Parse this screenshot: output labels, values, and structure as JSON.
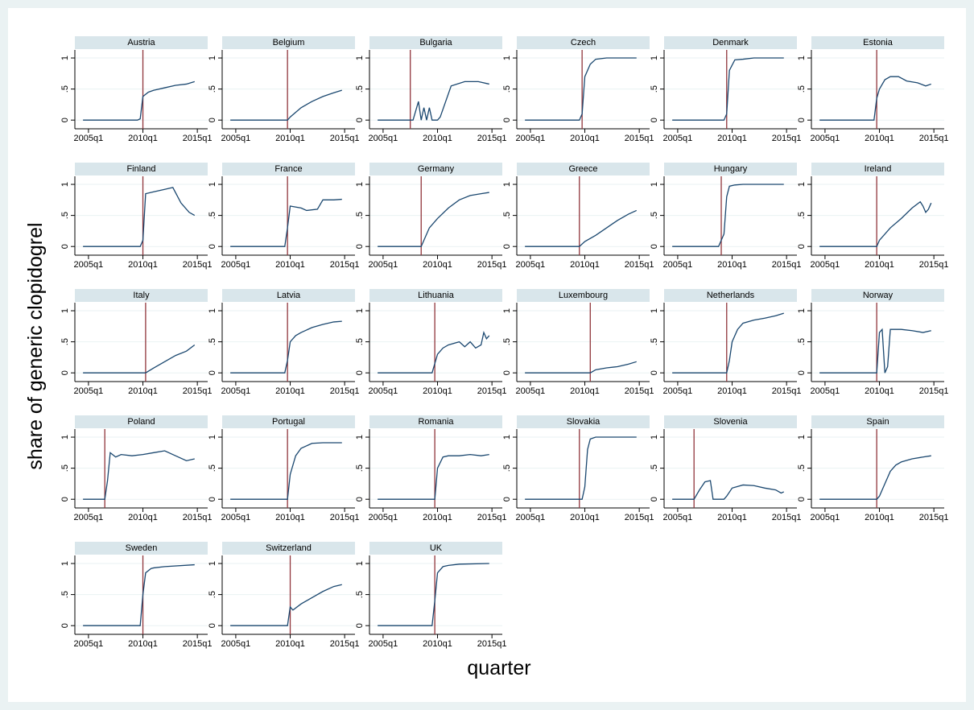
{
  "chart_data": {
    "type": "line",
    "xlabel": "quarter",
    "ylabel": "share of generic clopidogrel",
    "color": "#1a476f",
    "event_color": "#90353b",
    "grid": true,
    "xlim": [
      2003.75,
      2015.95
    ],
    "ylim": [
      -0.14,
      1.13
    ],
    "xticks": [
      {
        "value": 2005,
        "label": "2005q1"
      },
      {
        "value": 2010,
        "label": "2010q1"
      },
      {
        "value": 2015,
        "label": "2015q1"
      }
    ],
    "yticks": [
      0,
      {
        "value": 0.5,
        "label": ".5"
      },
      1
    ],
    "panels": [
      {
        "title": "Austria",
        "event": 2010,
        "x": [
          2004.5,
          2009.5,
          2009.75,
          2010,
          2010.5,
          2011,
          2012,
          2013,
          2014,
          2014.75
        ],
        "values": [
          0,
          0,
          0.02,
          0.38,
          0.45,
          0.48,
          0.52,
          0.56,
          0.58,
          0.62
        ]
      },
      {
        "title": "Belgium",
        "event": 2009.75,
        "x": [
          2004.5,
          2009.5,
          2009.75,
          2010,
          2011,
          2012,
          2013,
          2014,
          2014.75
        ],
        "values": [
          0,
          0,
          0,
          0.05,
          0.2,
          0.3,
          0.38,
          0.44,
          0.48
        ]
      },
      {
        "title": "Bulgaria",
        "event": 2007.5,
        "x": [
          2004.5,
          2007.75,
          2008.25,
          2008.5,
          2008.75,
          2009,
          2009.25,
          2009.5,
          2010,
          2010.25,
          2011.25,
          2012.5,
          2013.75,
          2014.75
        ],
        "values": [
          0,
          0,
          0.3,
          0,
          0.2,
          0,
          0.2,
          0,
          0,
          0.05,
          0.55,
          0.62,
          0.62,
          0.58
        ]
      },
      {
        "title": "Czech",
        "event": 2009.75,
        "x": [
          2004.5,
          2009.5,
          2009.75,
          2010,
          2010.5,
          2011,
          2012,
          2014.75
        ],
        "values": [
          0,
          0,
          0.1,
          0.7,
          0.9,
          0.98,
          1,
          1
        ]
      },
      {
        "title": "Denmark",
        "event": 2009.5,
        "x": [
          2004.5,
          2009.25,
          2009.5,
          2009.75,
          2010.25,
          2011,
          2012,
          2014.75
        ],
        "values": [
          0,
          0,
          0.1,
          0.8,
          0.97,
          0.98,
          1,
          1
        ]
      },
      {
        "title": "Estonia",
        "event": 2009.75,
        "x": [
          2004.5,
          2009.5,
          2009.75,
          2010,
          2010.5,
          2011,
          2011.75,
          2012.5,
          2013.5,
          2014.25,
          2014.75
        ],
        "values": [
          0,
          0,
          0.35,
          0.5,
          0.65,
          0.7,
          0.7,
          0.63,
          0.6,
          0.55,
          0.58
        ]
      },
      {
        "title": "Finland",
        "event": 2010,
        "x": [
          2004.5,
          2009.75,
          2010,
          2010.25,
          2011,
          2012,
          2012.75,
          2013.5,
          2014.25,
          2014.75
        ],
        "values": [
          0,
          0,
          0.1,
          0.85,
          0.88,
          0.92,
          0.95,
          0.7,
          0.55,
          0.5
        ]
      },
      {
        "title": "France",
        "event": 2009.75,
        "x": [
          2004.5,
          2009.5,
          2009.75,
          2010,
          2011,
          2011.5,
          2012.5,
          2013,
          2014,
          2014.75
        ],
        "values": [
          0,
          0,
          0.3,
          0.65,
          0.62,
          0.58,
          0.6,
          0.75,
          0.75,
          0.76
        ]
      },
      {
        "title": "Germany",
        "event": 2008.5,
        "x": [
          2004.5,
          2008.5,
          2008.75,
          2009.25,
          2010,
          2011,
          2012,
          2013,
          2014,
          2014.75
        ],
        "values": [
          0,
          0,
          0.1,
          0.3,
          0.45,
          0.62,
          0.75,
          0.82,
          0.85,
          0.87
        ]
      },
      {
        "title": "Greece",
        "event": 2009.5,
        "x": [
          2004.5,
          2009.5,
          2010,
          2011,
          2012,
          2013,
          2014,
          2014.75
        ],
        "values": [
          0,
          0,
          0.08,
          0.18,
          0.3,
          0.42,
          0.52,
          0.58
        ]
      },
      {
        "title": "Hungary",
        "event": 2009,
        "x": [
          2004.5,
          2008.75,
          2009.25,
          2009.5,
          2009.75,
          2010.25,
          2011,
          2014.75
        ],
        "values": [
          0,
          0,
          0.2,
          0.8,
          0.97,
          0.99,
          1,
          1
        ]
      },
      {
        "title": "Ireland",
        "event": 2009.75,
        "x": [
          2004.5,
          2009.75,
          2010,
          2011,
          2012,
          2013,
          2013.75,
          2014,
          2014.25,
          2014.5,
          2014.75
        ],
        "values": [
          0,
          0,
          0.1,
          0.3,
          0.45,
          0.62,
          0.72,
          0.65,
          0.55,
          0.6,
          0.7
        ]
      },
      {
        "title": "Italy",
        "event": 2010.25,
        "x": [
          2004.5,
          2010.25,
          2011,
          2012,
          2013,
          2014,
          2014.75
        ],
        "values": [
          0,
          0,
          0.08,
          0.18,
          0.28,
          0.35,
          0.45
        ]
      },
      {
        "title": "Latvia",
        "event": 2009.75,
        "x": [
          2004.5,
          2009.5,
          2009.75,
          2010,
          2010.5,
          2011,
          2012,
          2013,
          2014,
          2014.75
        ],
        "values": [
          0,
          0,
          0.2,
          0.5,
          0.6,
          0.65,
          0.73,
          0.78,
          0.82,
          0.83
        ]
      },
      {
        "title": "Lithuania",
        "event": 2009.75,
        "x": [
          2004.5,
          2009.5,
          2010,
          2010.5,
          2011,
          2012,
          2012.5,
          2013,
          2013.5,
          2014,
          2014.25,
          2014.5,
          2014.75
        ],
        "values": [
          0,
          0,
          0.3,
          0.4,
          0.45,
          0.5,
          0.42,
          0.5,
          0.4,
          0.45,
          0.65,
          0.55,
          0.6
        ]
      },
      {
        "title": "Luxembourg",
        "event": 2010.5,
        "x": [
          2004.5,
          2010.5,
          2011,
          2012,
          2013,
          2014,
          2014.75
        ],
        "values": [
          0,
          0,
          0.05,
          0.08,
          0.1,
          0.14,
          0.18
        ]
      },
      {
        "title": "Netherlands",
        "event": 2009.5,
        "x": [
          2004.5,
          2009.5,
          2009.75,
          2010,
          2010.5,
          2011,
          2012,
          2013,
          2014,
          2014.75
        ],
        "values": [
          0,
          0,
          0.2,
          0.5,
          0.7,
          0.8,
          0.85,
          0.88,
          0.92,
          0.96
        ]
      },
      {
        "title": "Norway",
        "event": 2009.75,
        "x": [
          2004.5,
          2009.75,
          2010,
          2010.25,
          2010.5,
          2010.75,
          2011,
          2011.25,
          2012,
          2013,
          2014,
          2014.75
        ],
        "values": [
          0,
          0,
          0.65,
          0.7,
          0,
          0.1,
          0.7,
          0.7,
          0.7,
          0.68,
          0.65,
          0.68
        ]
      },
      {
        "title": "Poland",
        "event": 2006.5,
        "x": [
          2004.5,
          2006.5,
          2006.75,
          2007,
          2007.5,
          2008,
          2009,
          2010,
          2011,
          2012,
          2013,
          2014,
          2014.75
        ],
        "values": [
          0,
          0,
          0.3,
          0.75,
          0.68,
          0.72,
          0.7,
          0.72,
          0.75,
          0.78,
          0.7,
          0.62,
          0.65
        ]
      },
      {
        "title": "Portugal",
        "event": 2009.75,
        "x": [
          2004.5,
          2009.75,
          2010,
          2010.5,
          2011,
          2012,
          2013,
          2014.75
        ],
        "values": [
          0,
          0,
          0.4,
          0.7,
          0.82,
          0.9,
          0.91,
          0.91
        ]
      },
      {
        "title": "Romania",
        "event": 2009.75,
        "x": [
          2004.5,
          2009.75,
          2010,
          2010.5,
          2011,
          2012,
          2013,
          2014,
          2014.75
        ],
        "values": [
          0,
          0,
          0.5,
          0.68,
          0.7,
          0.7,
          0.72,
          0.7,
          0.72
        ]
      },
      {
        "title": "Slovakia",
        "event": 2009.5,
        "x": [
          2004.5,
          2009.75,
          2010,
          2010.25,
          2010.5,
          2011,
          2014.75
        ],
        "values": [
          0,
          0,
          0.2,
          0.8,
          0.97,
          1,
          1
        ]
      },
      {
        "title": "Slovenia",
        "event": 2006.5,
        "x": [
          2004.5,
          2006.5,
          2007,
          2007.5,
          2008,
          2008.25,
          2009.25,
          2009.5,
          2010,
          2011,
          2012,
          2013,
          2014,
          2014.5,
          2014.75
        ],
        "values": [
          0,
          0,
          0.15,
          0.28,
          0.3,
          0,
          0,
          0.05,
          0.18,
          0.23,
          0.22,
          0.18,
          0.15,
          0.1,
          0.12
        ]
      },
      {
        "title": "Spain",
        "event": 2009.75,
        "x": [
          2004.5,
          2009.75,
          2010,
          2010.5,
          2011,
          2011.5,
          2012,
          2013,
          2014,
          2014.75
        ],
        "values": [
          0,
          0,
          0.05,
          0.25,
          0.45,
          0.55,
          0.6,
          0.65,
          0.68,
          0.7
        ]
      },
      {
        "title": "Sweden",
        "event": 2010,
        "x": [
          2004.5,
          2009.75,
          2010,
          2010.25,
          2010.75,
          2011,
          2012,
          2014.75
        ],
        "values": [
          0,
          0,
          0.5,
          0.85,
          0.92,
          0.93,
          0.95,
          0.98
        ]
      },
      {
        "title": "Switzerland",
        "event": 2010,
        "x": [
          2004.5,
          2009.75,
          2010,
          2010.25,
          2011,
          2012,
          2013,
          2014,
          2014.75
        ],
        "values": [
          0,
          0,
          0.3,
          0.25,
          0.35,
          0.45,
          0.55,
          0.63,
          0.66
        ]
      },
      {
        "title": "UK",
        "event": 2009.75,
        "x": [
          2004.5,
          2009.5,
          2009.75,
          2010,
          2010.5,
          2011,
          2012,
          2014.75
        ],
        "values": [
          0,
          0,
          0.4,
          0.85,
          0.95,
          0.97,
          0.99,
          1
        ]
      }
    ]
  }
}
